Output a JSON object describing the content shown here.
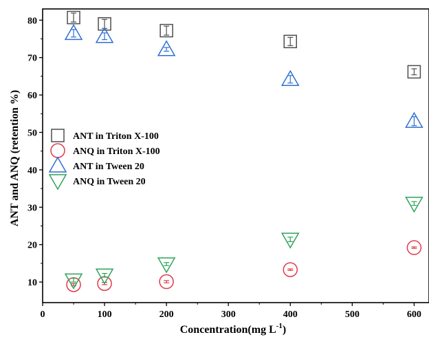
{
  "chart_data": {
    "type": "scatter",
    "xlabel": "Concentration(mg L",
    "xlabel_sup": "-1",
    "xlabel_end": ")",
    "ylabel": "ANT and ANQ (retention %)",
    "xlim": [
      0,
      624
    ],
    "ylim": [
      4.5,
      83
    ],
    "x_ticks": [
      0,
      100,
      200,
      300,
      400,
      500,
      600
    ],
    "y_ticks": [
      10,
      20,
      30,
      40,
      50,
      60,
      70,
      80
    ],
    "grid": false,
    "legend": "left",
    "series": [
      {
        "name": "ANT in Triton X-100",
        "marker": "square",
        "color": "#4d4d4d",
        "x": [
          50,
          100,
          200,
          400,
          600
        ],
        "y": [
          80.7,
          79.0,
          77.2,
          74.3,
          66.2
        ],
        "err": [
          1.2,
          1.2,
          1.2,
          1.1,
          0.8
        ]
      },
      {
        "name": "ANQ in Triton X-100",
        "marker": "circle",
        "color": "#e0394b",
        "x": [
          50,
          100,
          200,
          400,
          600
        ],
        "y": [
          9.3,
          9.6,
          10.1,
          13.3,
          19.2
        ],
        "err": [
          0.3,
          0.3,
          0.3,
          0.2,
          0.2
        ]
      },
      {
        "name": "ANT in Tween 20",
        "marker": "triangle-up",
        "color": "#2e6fd1",
        "x": [
          50,
          100,
          200,
          400,
          600
        ],
        "y": [
          76.5,
          75.7,
          72.2,
          64.2,
          53.0
        ],
        "err": [
          1.0,
          0.9,
          0.5,
          1.0,
          1.2
        ]
      },
      {
        "name": "ANQ in Tween 20",
        "marker": "triangle-down",
        "color": "#2ea35a",
        "x": [
          50,
          100,
          200,
          400,
          600
        ],
        "y": [
          10.5,
          11.8,
          14.8,
          21.4,
          31.0
        ],
        "err": [
          0.5,
          0.5,
          0.4,
          0.6,
          0.5
        ]
      }
    ]
  }
}
